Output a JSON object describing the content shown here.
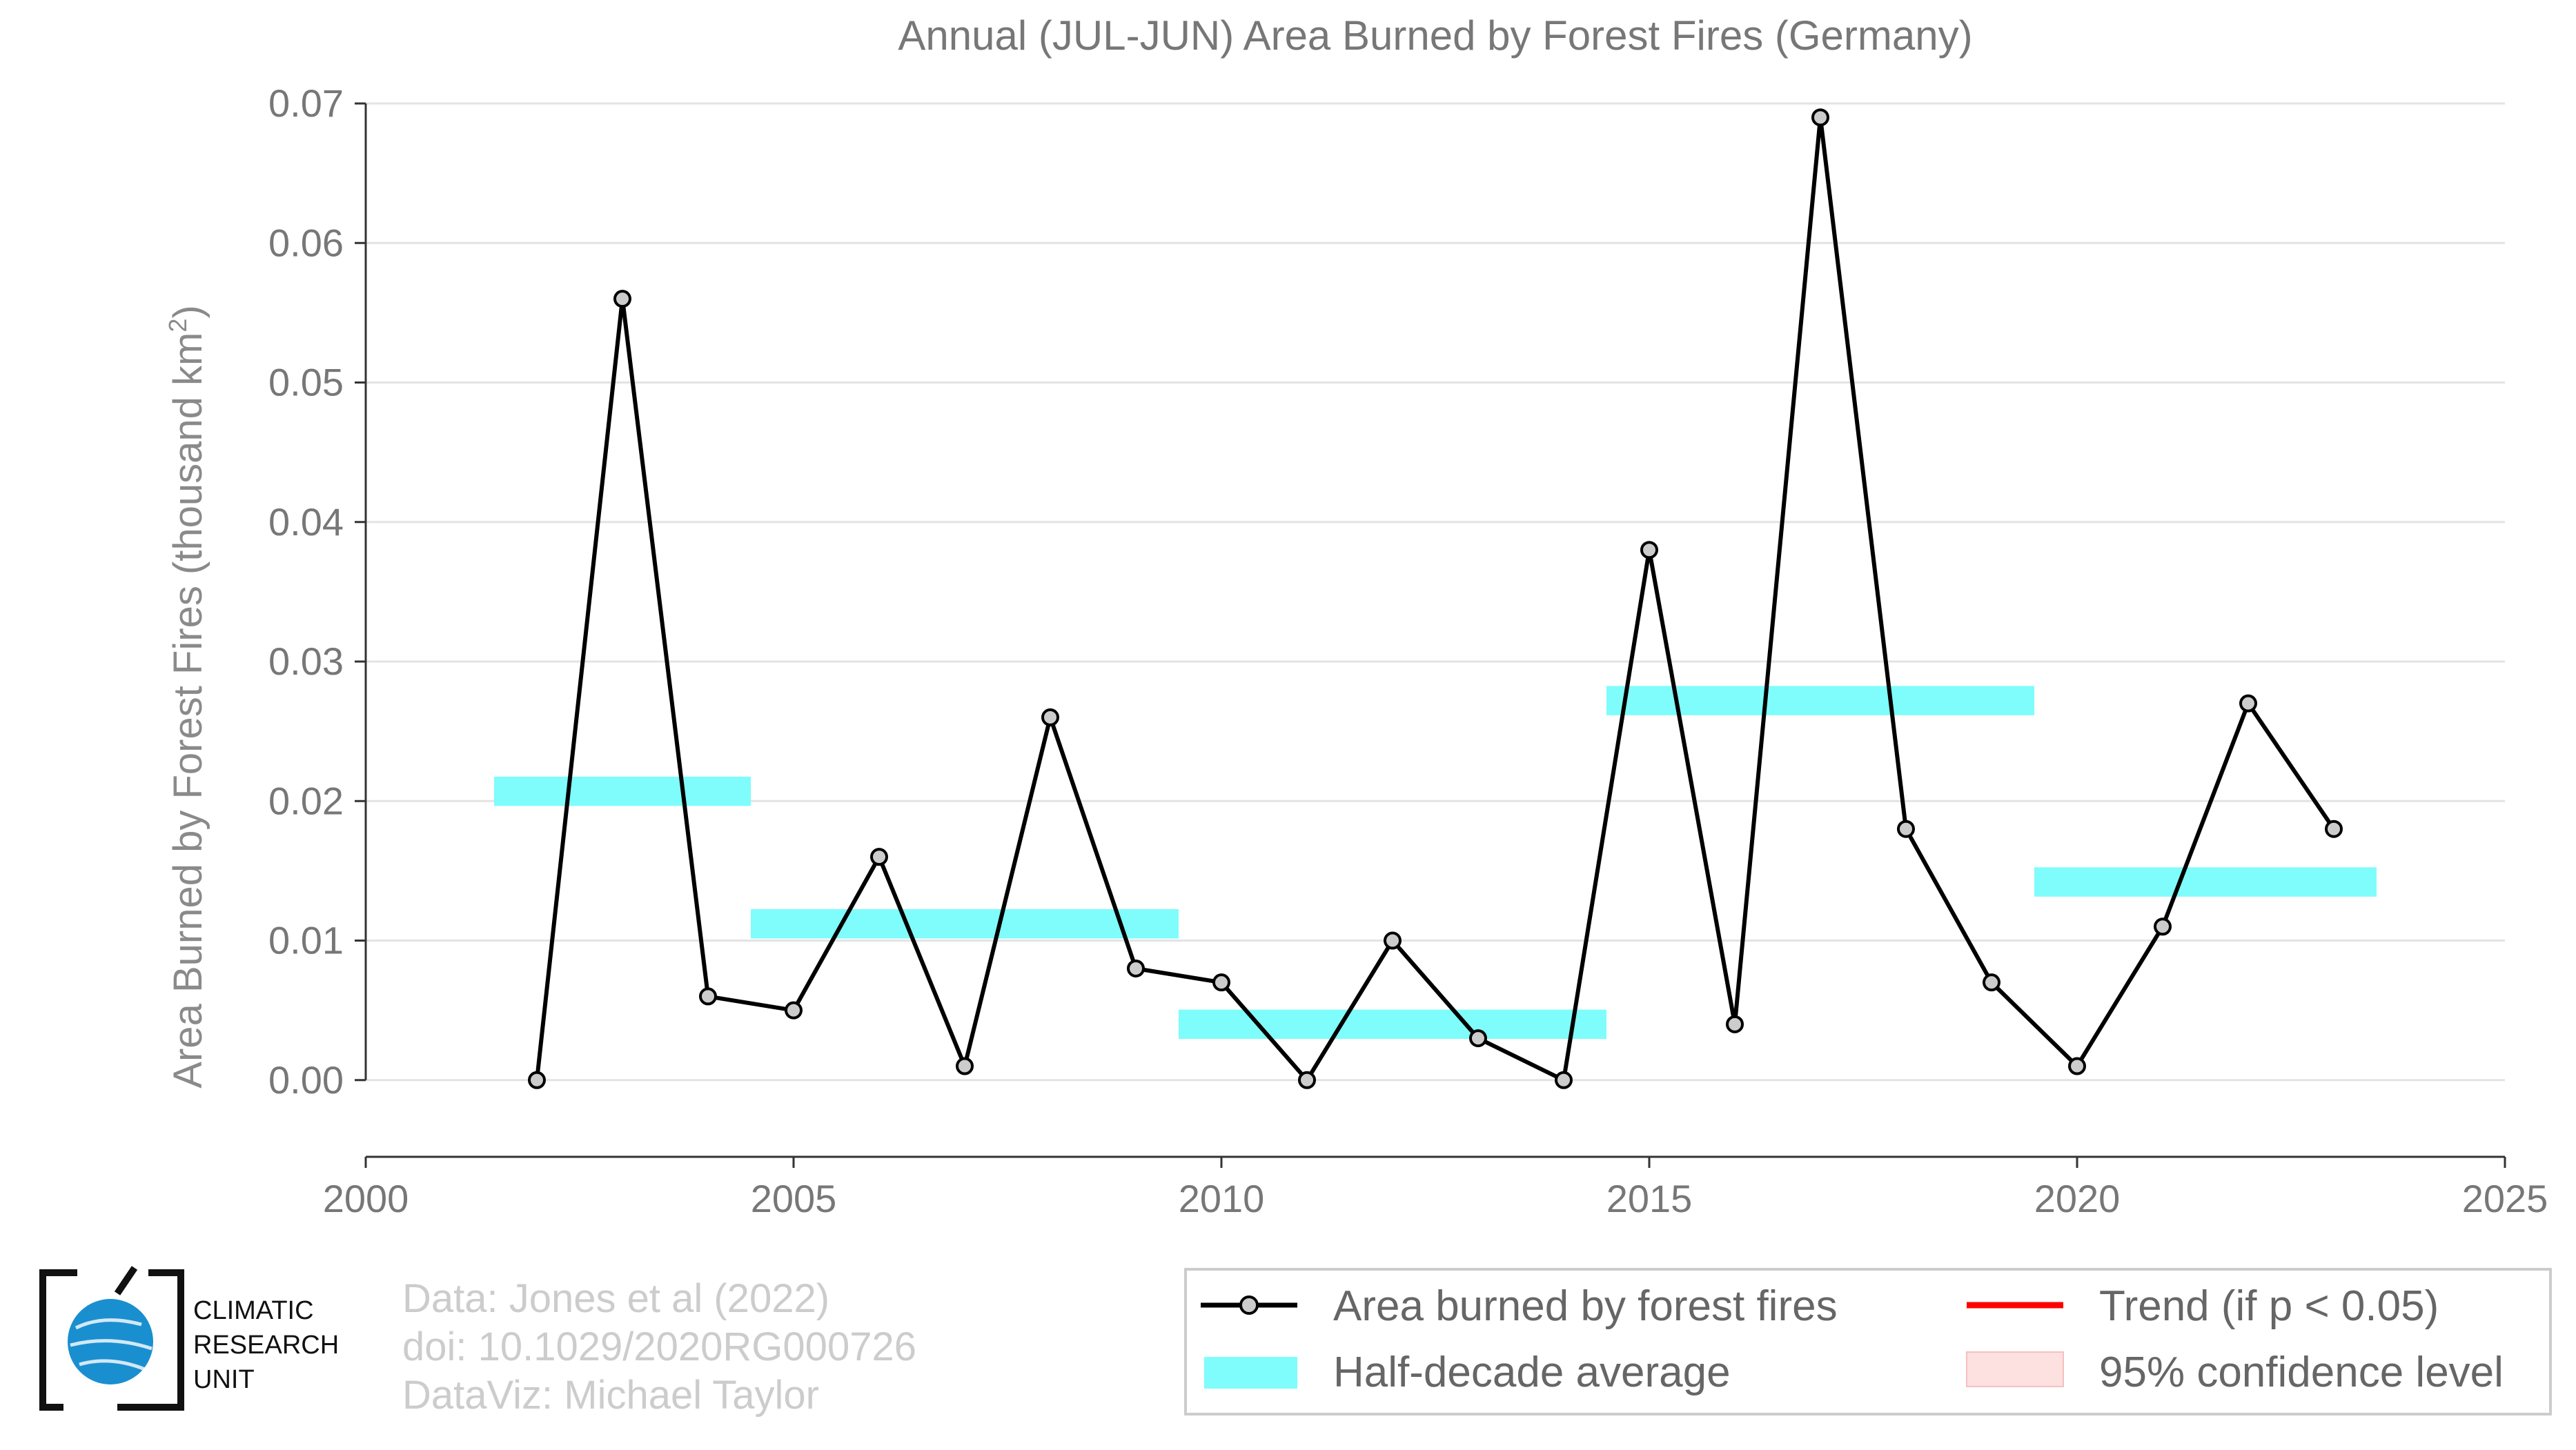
{
  "chart_data": {
    "type": "line",
    "title": "Annual (JUL-JUN) Area Burned by Forest Fires (Germany)",
    "ylabel": "Area Burned by Forest Fires (thousand km",
    "ylabel_superscript": "2",
    "ylabel_close": ")",
    "xlabel": "",
    "xlim": [
      2000,
      2025
    ],
    "ylim": [
      -0.0055,
      0.07
    ],
    "x_ticks": [
      2000,
      2005,
      2010,
      2015,
      2020,
      2025
    ],
    "y_ticks": [
      0.0,
      0.01,
      0.02,
      0.03,
      0.04,
      0.05,
      0.06,
      0.07
    ],
    "y_tick_labels": [
      "0.00",
      "0.01",
      "0.02",
      "0.03",
      "0.04",
      "0.05",
      "0.06",
      "0.07"
    ],
    "grid": "horizontal",
    "legend_position": "bottom-right",
    "series": [
      {
        "name": "Area burned by forest fires",
        "color": "#000000",
        "marker_fill": "#cccccc",
        "x": [
          2002,
          2003,
          2004,
          2005,
          2006,
          2007,
          2008,
          2009,
          2010,
          2011,
          2012,
          2013,
          2014,
          2015,
          2016,
          2017,
          2018,
          2019,
          2020,
          2021,
          2022,
          2023
        ],
        "values": [
          0.0,
          0.056,
          0.006,
          0.005,
          0.016,
          0.001,
          0.026,
          0.008,
          0.007,
          0.0,
          0.01,
          0.003,
          0.0,
          0.038,
          0.004,
          0.069,
          0.018,
          0.007,
          0.001,
          0.011,
          0.027,
          0.018
        ]
      },
      {
        "name": "Half-decade average",
        "color": "#7ffcfc",
        "segments": [
          {
            "x_start": 2001.5,
            "x_end": 2004.5,
            "value": 0.0207
          },
          {
            "x_start": 2004.5,
            "x_end": 2009.5,
            "value": 0.0112
          },
          {
            "x_start": 2009.5,
            "x_end": 2014.5,
            "value": 0.004
          },
          {
            "x_start": 2014.5,
            "x_end": 2019.5,
            "value": 0.0272
          },
          {
            "x_start": 2019.5,
            "x_end": 2023.5,
            "value": 0.0142
          }
        ]
      }
    ],
    "legend": [
      {
        "label": "Area burned by forest fires",
        "kind": "line-marker",
        "color": "#000000"
      },
      {
        "label": "Trend (if p < 0.05)",
        "kind": "line",
        "color": "#ff0000"
      },
      {
        "label": "Half-decade average",
        "kind": "band",
        "color": "#7ffcfc"
      },
      {
        "label": "95% confidence level",
        "kind": "patch",
        "color": "#fde0e0"
      }
    ]
  },
  "credits": {
    "line1": "Data: Jones et al (2022)",
    "line2": "doi: 10.1029/2020RG000726",
    "line3": "DataViz: Michael Taylor"
  },
  "logo": {
    "line1": "CLIMATIC",
    "line2": "RESEARCH",
    "line3": "UNIT",
    "globe_color": "#1a8fd0"
  }
}
